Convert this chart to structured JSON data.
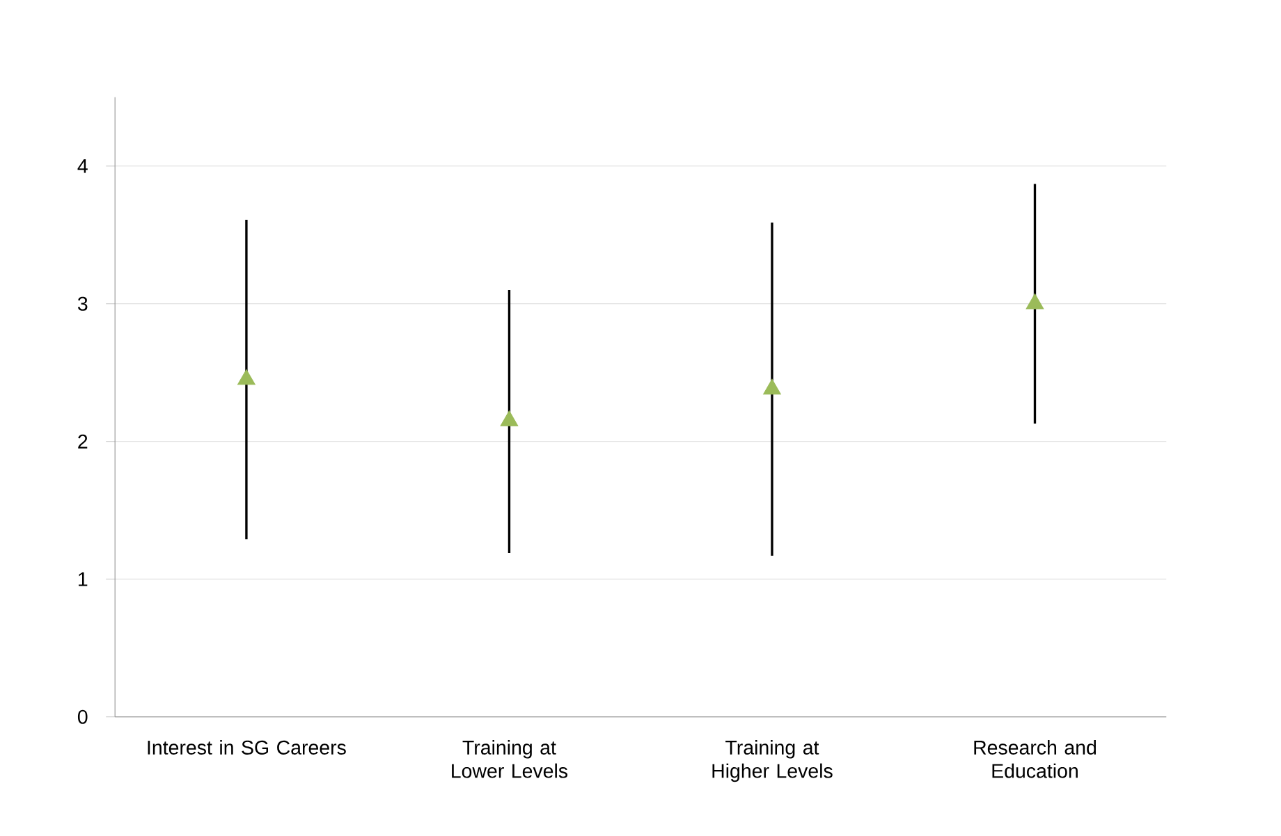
{
  "chart_data": {
    "type": "scatter",
    "categories": [
      "Interest in SG Careers",
      "Training at Lower Levels",
      "Training at Higher Levels",
      "Research and Education"
    ],
    "values": [
      2.45,
      2.15,
      2.38,
      3.0
    ],
    "errors": [
      [
        1.29,
        3.61
      ],
      [
        1.19,
        3.1
      ],
      [
        1.17,
        3.59
      ],
      [
        2.13,
        3.87
      ]
    ],
    "color": "#9bbb59",
    "marker": "triangle",
    "ylim": [
      0,
      4.5
    ],
    "yticks": [
      0,
      1,
      2,
      3,
      4
    ],
    "grid": "y"
  }
}
